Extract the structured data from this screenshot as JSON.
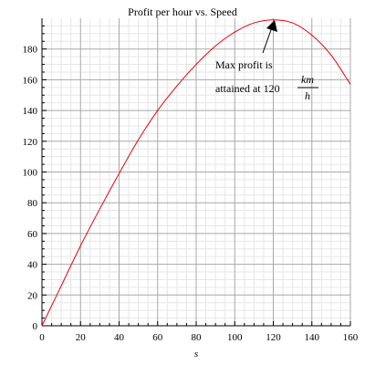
{
  "chart_data": {
    "type": "line",
    "title": "Profit per hour vs. Speed",
    "xlabel": "s",
    "ylabel": "",
    "xlim": [
      0,
      160
    ],
    "ylim": [
      0,
      200
    ],
    "x_ticks": [
      0,
      20,
      40,
      60,
      80,
      100,
      120,
      140,
      160
    ],
    "y_ticks": [
      0,
      20,
      40,
      60,
      80,
      100,
      120,
      140,
      160,
      180
    ],
    "grid": true,
    "line_color": "#e8000b",
    "series": [
      {
        "x": [
          0,
          10,
          20,
          30,
          40,
          50,
          60,
          70,
          80,
          90,
          100,
          110,
          120,
          130,
          140,
          150,
          160
        ],
        "y": [
          0,
          26,
          52,
          76,
          99,
          121,
          140,
          156,
          170,
          182,
          191,
          197,
          199,
          197,
          189,
          176,
          157
        ]
      }
    ],
    "annotation": {
      "line1": "Max profit is",
      "line2": "attained at 120",
      "unit_num": "km",
      "unit_den": "h",
      "point": [
        120,
        199
      ]
    }
  }
}
